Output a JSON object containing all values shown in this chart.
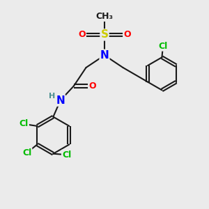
{
  "bg_color": "#ebebeb",
  "bond_color": "#1a1a1a",
  "bond_width": 1.5,
  "atom_colors": {
    "N": "#0000ff",
    "O": "#ff0000",
    "S": "#cccc00",
    "Cl": "#00bb00",
    "H": "#4a8f8f",
    "C": "#1a1a1a"
  },
  "font_size": 9,
  "figsize": [
    3.0,
    3.0
  ],
  "dpi": 100
}
